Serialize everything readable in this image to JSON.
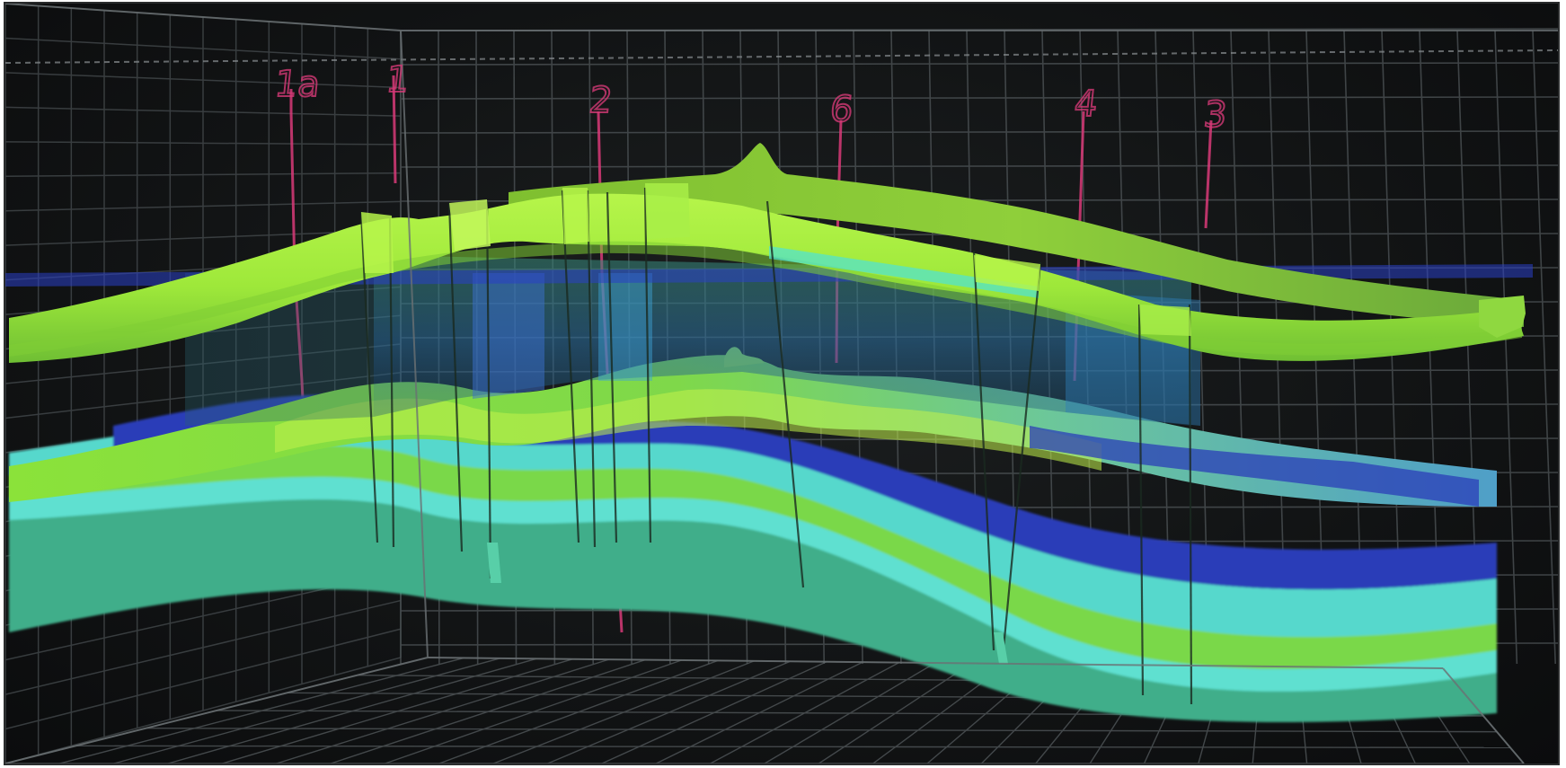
{
  "scene": {
    "description_tag": "3d-geological-reservoir-model",
    "background_color": "#121415",
    "grid_color": "#5d6468",
    "layer_colors": {
      "yellow_green": "#9cef3a",
      "green": "#5fcf4a",
      "mid_green": "#6ec84a",
      "cyan": "#4fe2d6",
      "aqua": "#53c9c3",
      "blue": "#2d3fc0",
      "deep_blue": "#1c2a9e"
    },
    "well_color": "#d83a78"
  },
  "wells": [
    {
      "id": "w-1a",
      "label": "1a"
    },
    {
      "id": "w-1",
      "label": "1"
    },
    {
      "id": "w-2",
      "label": "2"
    },
    {
      "id": "w-6",
      "label": "6"
    },
    {
      "id": "w-4",
      "label": "4"
    },
    {
      "id": "w-3",
      "label": "3"
    }
  ]
}
